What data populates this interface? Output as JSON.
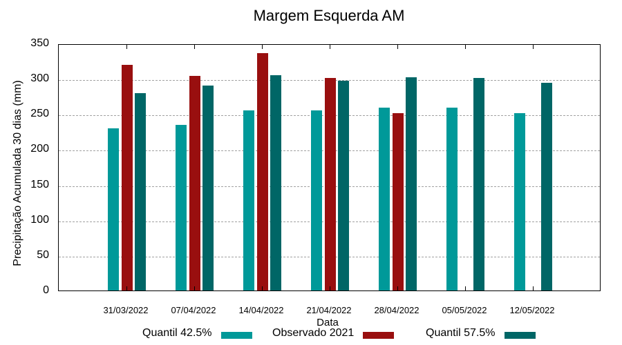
{
  "chart_data": {
    "type": "bar",
    "title": "Margem Esquerda AM",
    "xlabel": "Data",
    "ylabel": "Precipitação Acumulada 30 dias (mm)",
    "ylim": [
      0,
      350
    ],
    "yticks": [
      0,
      50,
      100,
      150,
      200,
      250,
      300,
      350
    ],
    "grid": true,
    "legend_position": "bottom",
    "categories": [
      "31/03/2022",
      "07/04/2022",
      "14/04/2022",
      "21/04/2022",
      "28/04/2022",
      "05/05/2022",
      "12/05/2022"
    ],
    "series": [
      {
        "name": "Quantil 42.5%",
        "color": "#009999",
        "values": [
          230,
          235,
          255,
          255,
          259,
          259,
          251
        ]
      },
      {
        "name": "Observado 2021",
        "color": "#990f0f",
        "values": [
          320,
          304,
          336,
          301,
          251,
          null,
          null
        ]
      },
      {
        "name": "Quantil 57.5%",
        "color": "#006666",
        "values": [
          280,
          290,
          305,
          297,
          302,
          301,
          294
        ]
      }
    ]
  },
  "legend": {
    "items": [
      {
        "label": "Quantil 42.5%"
      },
      {
        "label": "Observado 2021"
      },
      {
        "label": "Quantil 57.5%"
      }
    ]
  }
}
